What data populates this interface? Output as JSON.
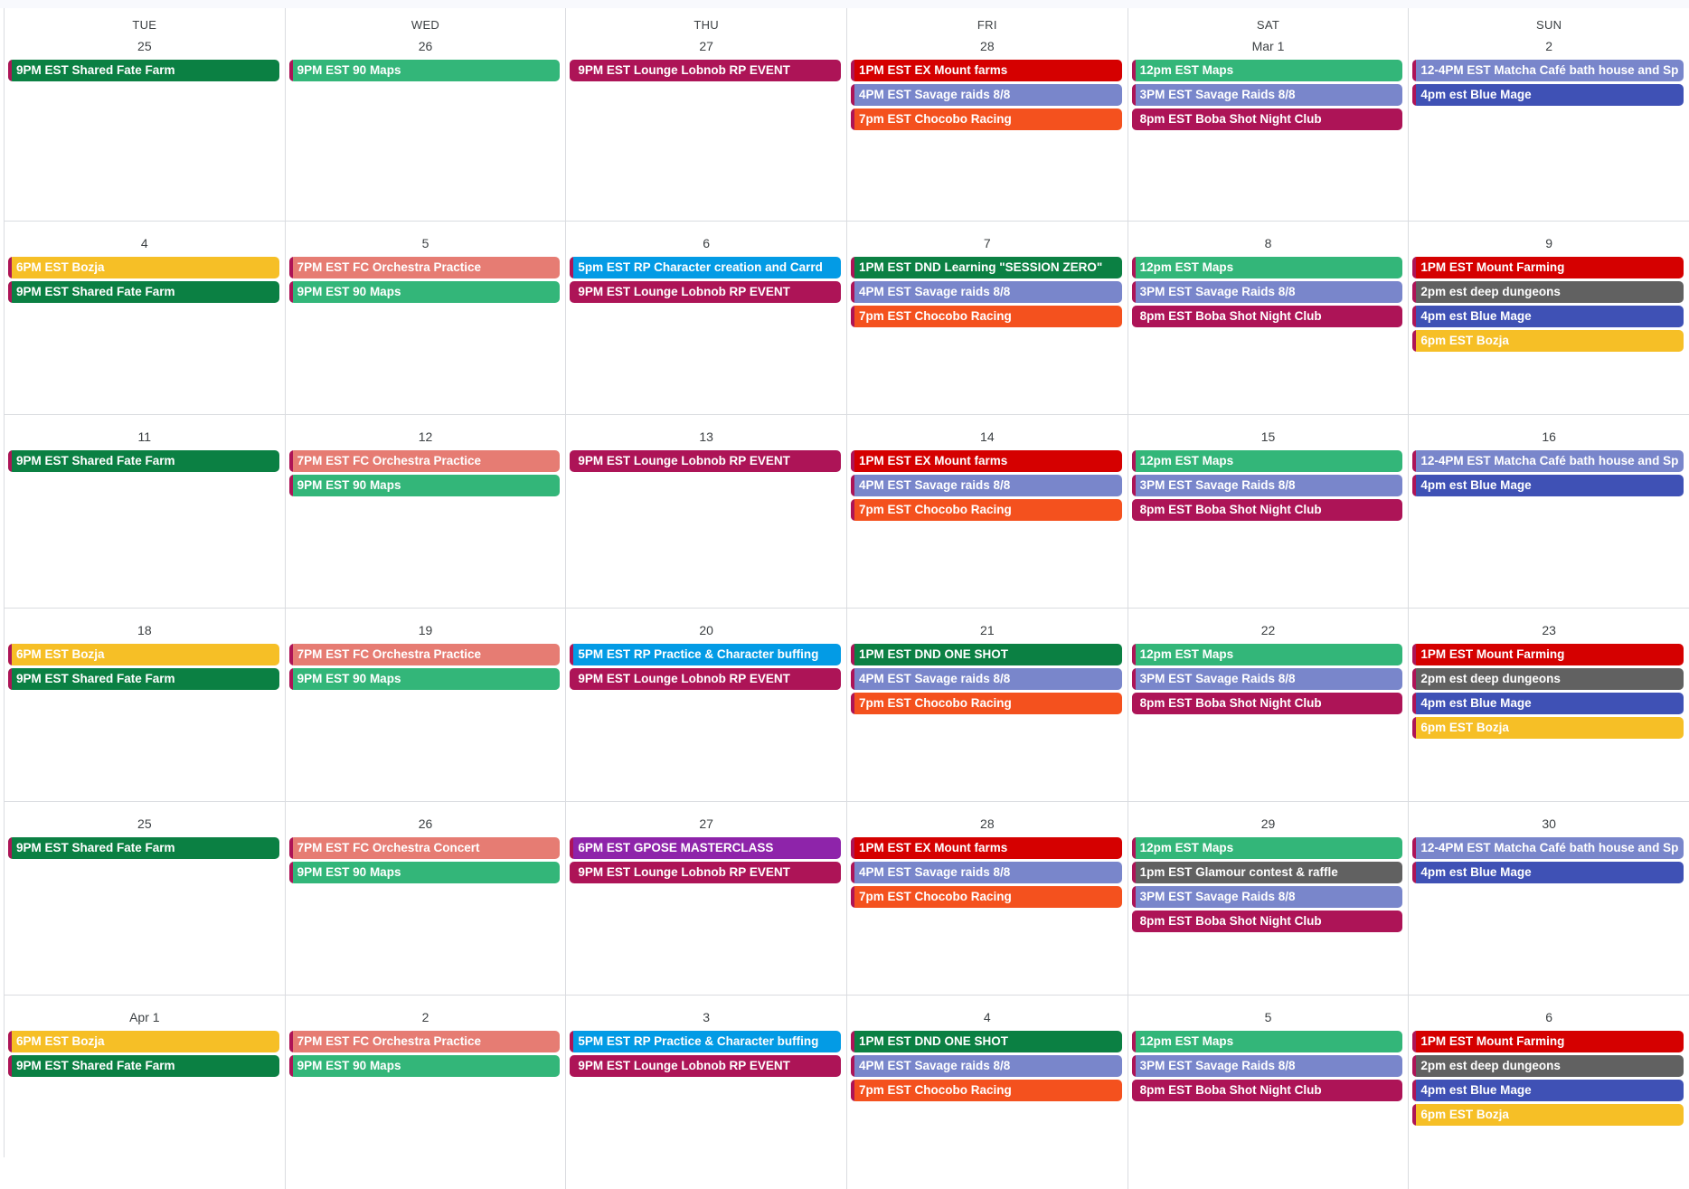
{
  "colors": {
    "darkgreen": "#0b8043",
    "green": "#33b679",
    "lavender": "#7986cb",
    "blueberry": "#3f51b5",
    "tomato": "#d50000",
    "tangerine": "#f4511e",
    "banana": "#f6bf26",
    "flamingo": "#e67c73",
    "grape": "#ad1457",
    "peacock": "#039be5",
    "graphite": "#616161",
    "purple": "#8e24aa",
    "stripe_default": "#ad1457"
  },
  "weekdays": [
    "TUE",
    "WED",
    "THU",
    "FRI",
    "SAT",
    "SUN"
  ],
  "weeks": [
    [
      {
        "date": "25",
        "events": [
          {
            "title": "9PM EST Shared Fate Farm",
            "color": "darkgreen"
          }
        ]
      },
      {
        "date": "26",
        "events": [
          {
            "title": "9PM EST 90 Maps",
            "color": "green"
          }
        ]
      },
      {
        "date": "27",
        "events": [
          {
            "title": "9PM EST Lounge Lobnob RP EVENT",
            "color": "grape"
          }
        ]
      },
      {
        "date": "28",
        "events": [
          {
            "title": "1PM EST EX Mount farms",
            "color": "tomato"
          },
          {
            "title": "4PM EST Savage raids 8/8",
            "color": "lavender"
          },
          {
            "title": "7pm EST Chocobo Racing",
            "color": "tangerine"
          }
        ]
      },
      {
        "date": "Mar 1",
        "events": [
          {
            "title": "12pm EST Maps",
            "color": "green"
          },
          {
            "title": "3PM EST Savage Raids 8/8",
            "color": "lavender"
          },
          {
            "title": "8pm EST Boba Shot Night Club",
            "color": "grape"
          }
        ]
      },
      {
        "date": "2",
        "events": [
          {
            "title": "12-4PM EST Matcha Café bath house and Sp",
            "color": "lavender"
          },
          {
            "title": "4pm est Blue Mage",
            "color": "blueberry"
          }
        ]
      }
    ],
    [
      {
        "date": "4",
        "events": [
          {
            "title": "6PM EST Bozja",
            "color": "banana"
          },
          {
            "title": "9PM EST Shared Fate Farm",
            "color": "darkgreen"
          }
        ]
      },
      {
        "date": "5",
        "events": [
          {
            "title": "7PM EST FC Orchestra Practice",
            "color": "flamingo"
          },
          {
            "title": "9PM EST 90 Maps",
            "color": "green"
          }
        ]
      },
      {
        "date": "6",
        "events": [
          {
            "title": "5pm EST RP Character creation and Carrd",
            "color": "peacock"
          },
          {
            "title": "9PM EST Lounge Lobnob RP EVENT",
            "color": "grape"
          }
        ]
      },
      {
        "date": "7",
        "events": [
          {
            "title": "1PM EST DND Learning \"SESSION ZERO\"",
            "color": "darkgreen"
          },
          {
            "title": "4PM EST Savage raids 8/8",
            "color": "lavender"
          },
          {
            "title": "7pm EST Chocobo Racing",
            "color": "tangerine"
          }
        ]
      },
      {
        "date": "8",
        "events": [
          {
            "title": "12pm EST Maps",
            "color": "green"
          },
          {
            "title": "3PM EST Savage Raids 8/8",
            "color": "lavender"
          },
          {
            "title": "8pm EST Boba Shot Night Club",
            "color": "grape"
          }
        ]
      },
      {
        "date": "9",
        "events": [
          {
            "title": "1PM EST Mount Farming",
            "color": "tomato"
          },
          {
            "title": "2pm est deep dungeons",
            "color": "graphite"
          },
          {
            "title": "4pm est Blue Mage",
            "color": "blueberry"
          },
          {
            "title": "6pm EST Bozja",
            "color": "banana"
          }
        ]
      }
    ],
    [
      {
        "date": "11",
        "events": [
          {
            "title": "9PM EST Shared Fate Farm",
            "color": "darkgreen"
          }
        ]
      },
      {
        "date": "12",
        "events": [
          {
            "title": "7PM EST FC Orchestra Practice",
            "color": "flamingo"
          },
          {
            "title": "9PM EST 90 Maps",
            "color": "green"
          }
        ]
      },
      {
        "date": "13",
        "events": [
          {
            "title": "9PM EST Lounge Lobnob RP EVENT",
            "color": "grape"
          }
        ]
      },
      {
        "date": "14",
        "events": [
          {
            "title": "1PM EST EX Mount farms",
            "color": "tomato"
          },
          {
            "title": "4PM EST Savage raids 8/8",
            "color": "lavender"
          },
          {
            "title": "7pm EST Chocobo Racing",
            "color": "tangerine"
          }
        ]
      },
      {
        "date": "15",
        "events": [
          {
            "title": "12pm EST Maps",
            "color": "green"
          },
          {
            "title": "3PM EST Savage Raids 8/8",
            "color": "lavender"
          },
          {
            "title": "8pm EST Boba Shot Night Club",
            "color": "grape"
          }
        ]
      },
      {
        "date": "16",
        "events": [
          {
            "title": "12-4PM EST Matcha Café bath house and Sp",
            "color": "lavender"
          },
          {
            "title": "4pm est Blue Mage",
            "color": "blueberry"
          }
        ]
      }
    ],
    [
      {
        "date": "18",
        "events": [
          {
            "title": "6PM EST Bozja",
            "color": "banana"
          },
          {
            "title": "9PM EST Shared Fate Farm",
            "color": "darkgreen"
          }
        ]
      },
      {
        "date": "19",
        "events": [
          {
            "title": "7PM EST FC Orchestra Practice",
            "color": "flamingo"
          },
          {
            "title": "9PM EST 90 Maps",
            "color": "green"
          }
        ]
      },
      {
        "date": "20",
        "events": [
          {
            "title": "5PM EST RP Practice & Character buffing",
            "color": "peacock"
          },
          {
            "title": "9PM EST Lounge Lobnob RP EVENT",
            "color": "grape"
          }
        ]
      },
      {
        "date": "21",
        "events": [
          {
            "title": "1PM EST DND ONE SHOT",
            "color": "darkgreen"
          },
          {
            "title": "4PM EST Savage raids 8/8",
            "color": "lavender"
          },
          {
            "title": "7pm EST Chocobo Racing",
            "color": "tangerine"
          }
        ]
      },
      {
        "date": "22",
        "events": [
          {
            "title": "12pm EST Maps",
            "color": "green"
          },
          {
            "title": "3PM EST Savage Raids 8/8",
            "color": "lavender"
          },
          {
            "title": "8pm EST Boba Shot Night Club",
            "color": "grape"
          }
        ]
      },
      {
        "date": "23",
        "events": [
          {
            "title": "1PM EST Mount Farming",
            "color": "tomato"
          },
          {
            "title": "2pm est deep dungeons",
            "color": "graphite"
          },
          {
            "title": "4pm est Blue Mage",
            "color": "blueberry"
          },
          {
            "title": "6pm EST Bozja",
            "color": "banana"
          }
        ]
      }
    ],
    [
      {
        "date": "25",
        "events": [
          {
            "title": "9PM EST Shared Fate Farm",
            "color": "darkgreen"
          }
        ]
      },
      {
        "date": "26",
        "events": [
          {
            "title": "7PM EST FC Orchestra Concert",
            "color": "flamingo"
          },
          {
            "title": "9PM EST 90 Maps",
            "color": "green"
          }
        ]
      },
      {
        "date": "27",
        "events": [
          {
            "title": "6PM EST GPOSE MASTERCLASS",
            "color": "purple"
          },
          {
            "title": "9PM EST Lounge Lobnob RP EVENT",
            "color": "grape"
          }
        ]
      },
      {
        "date": "28",
        "events": [
          {
            "title": "1PM EST EX Mount farms",
            "color": "tomato"
          },
          {
            "title": "4PM EST Savage raids 8/8",
            "color": "lavender"
          },
          {
            "title": "7pm EST Chocobo Racing",
            "color": "tangerine"
          }
        ]
      },
      {
        "date": "29",
        "events": [
          {
            "title": "12pm EST Maps",
            "color": "green"
          },
          {
            "title": "1pm EST Glamour contest & raffle",
            "color": "graphite"
          },
          {
            "title": "3PM EST Savage Raids 8/8",
            "color": "lavender"
          },
          {
            "title": "8pm EST Boba Shot Night Club",
            "color": "grape"
          }
        ]
      },
      {
        "date": "30",
        "events": [
          {
            "title": "12-4PM EST Matcha Café bath house and Sp",
            "color": "lavender"
          },
          {
            "title": "4pm est Blue Mage",
            "color": "blueberry"
          }
        ]
      }
    ],
    [
      {
        "date": "Apr 1",
        "events": [
          {
            "title": "6PM EST Bozja",
            "color": "banana"
          },
          {
            "title": "9PM EST Shared Fate Farm",
            "color": "darkgreen"
          }
        ]
      },
      {
        "date": "2",
        "events": [
          {
            "title": "7PM EST FC Orchestra Practice",
            "color": "flamingo"
          },
          {
            "title": "9PM EST 90 Maps",
            "color": "green"
          }
        ]
      },
      {
        "date": "3",
        "events": [
          {
            "title": "5PM EST RP Practice & Character buffing",
            "color": "peacock"
          },
          {
            "title": "9PM EST Lounge Lobnob RP EVENT",
            "color": "grape"
          }
        ]
      },
      {
        "date": "4",
        "events": [
          {
            "title": "1PM EST DND ONE SHOT",
            "color": "darkgreen"
          },
          {
            "title": "4PM EST Savage raids 8/8",
            "color": "lavender"
          },
          {
            "title": "7pm EST Chocobo Racing",
            "color": "tangerine"
          }
        ]
      },
      {
        "date": "5",
        "events": [
          {
            "title": "12pm EST Maps",
            "color": "green"
          },
          {
            "title": "3PM EST Savage Raids 8/8",
            "color": "lavender"
          },
          {
            "title": "8pm EST Boba Shot Night Club",
            "color": "grape"
          }
        ]
      },
      {
        "date": "6",
        "events": [
          {
            "title": "1PM EST Mount Farming",
            "color": "tomato"
          },
          {
            "title": "2pm est deep dungeons",
            "color": "graphite"
          },
          {
            "title": "4pm est Blue Mage",
            "color": "blueberry"
          },
          {
            "title": "6pm EST Bozja",
            "color": "banana"
          }
        ]
      }
    ]
  ]
}
